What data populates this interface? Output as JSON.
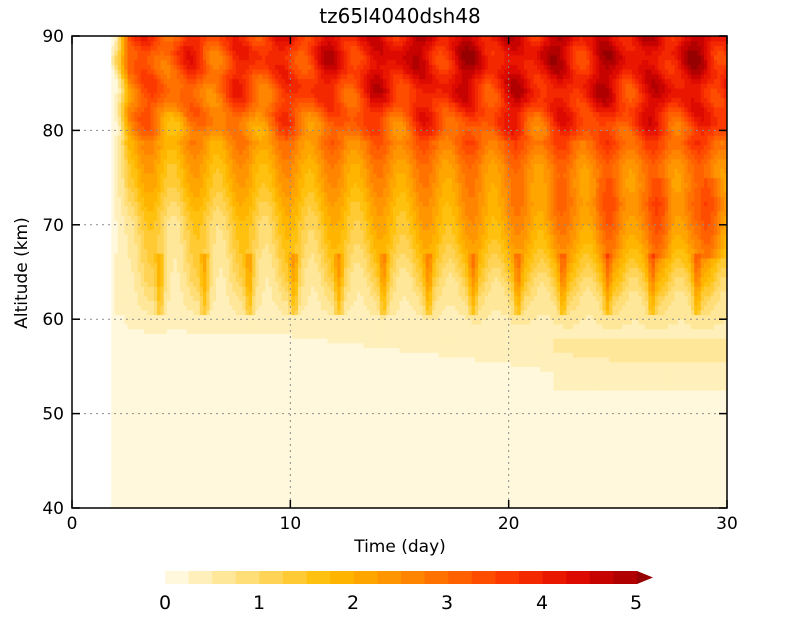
{
  "chart_data": {
    "type": "heatmap",
    "title": "tz65l4040dsh48",
    "xlabel": "Time (day)",
    "ylabel": "Altitude (km)",
    "xlim": [
      0,
      30
    ],
    "ylim": [
      40,
      90
    ],
    "x_ticks": [
      0,
      10,
      20,
      30
    ],
    "y_ticks": [
      40,
      50,
      60,
      70,
      80,
      90
    ],
    "grid": true,
    "data_start_day": 1.8,
    "colorbar": {
      "orientation": "horizontal",
      "placement": "bottom",
      "range": [
        0,
        5
      ],
      "ticks": [
        0,
        1,
        2,
        3,
        4,
        5
      ],
      "extend": "max",
      "colors": [
        "#fff8dc",
        "#fff0bb",
        "#ffe79a",
        "#ffde78",
        "#ffd456",
        "#ffca33",
        "#ffc10f",
        "#ffb400",
        "#ffa500",
        "#ff9500",
        "#ff8400",
        "#ff7200",
        "#ff6000",
        "#ff4d00",
        "#fc3a00",
        "#f42800",
        "#ea1700",
        "#dc0a00",
        "#c70300",
        "#b00000",
        "#960000"
      ]
    },
    "altitude_profile": {
      "altitude": [
        40,
        45,
        50,
        55,
        58,
        60,
        62,
        64,
        66,
        68,
        70,
        72,
        74,
        76,
        78,
        80,
        82,
        84,
        86,
        88,
        90
      ],
      "value_day5": [
        0.05,
        0.05,
        0.05,
        0.1,
        0.2,
        0.4,
        0.6,
        0.8,
        0.9,
        1.0,
        1.1,
        1.4,
        1.7,
        1.9,
        2.2,
        2.4,
        2.8,
        3.0,
        3.2,
        3.4,
        3.5
      ],
      "value_day15": [
        0.05,
        0.05,
        0.1,
        0.2,
        0.3,
        0.45,
        0.7,
        1.0,
        1.3,
        1.6,
        1.8,
        2.0,
        2.3,
        2.5,
        2.9,
        3.2,
        3.6,
        4.0,
        4.2,
        4.3,
        4.3
      ],
      "value_day25": [
        0.05,
        0.1,
        0.15,
        0.3,
        0.4,
        0.6,
        0.9,
        1.4,
        1.9,
        2.3,
        2.6,
        2.8,
        2.6,
        2.7,
        3.2,
        3.5,
        3.9,
        4.1,
        4.2,
        4.3,
        4.3
      ]
    }
  }
}
